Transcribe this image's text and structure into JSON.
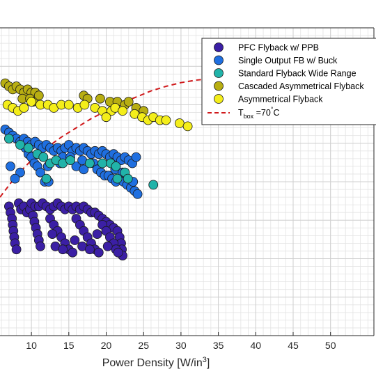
{
  "chart_data": {
    "type": "scatter",
    "xlabel": "Power Density [W/in",
    "xlabel_sup": "3",
    "xlabel_close": "]",
    "xlim": [
      5.8,
      55.8
    ],
    "ylim": [
      0,
      1
    ],
    "xticks": [
      10,
      15,
      20,
      25,
      30,
      35,
      40,
      45,
      50
    ],
    "grid": "on (major and minor)",
    "legend_placement": "top-right",
    "series": [
      {
        "name": "PFC Flyback w/ PPB",
        "color": "#3b1fa5",
        "points": [
          [
            7,
            0.42
          ],
          [
            7.2,
            0.4
          ],
          [
            7.4,
            0.38
          ],
          [
            7.5,
            0.36
          ],
          [
            7.6,
            0.34
          ],
          [
            7.7,
            0.32
          ],
          [
            7.8,
            0.3
          ],
          [
            8,
            0.28
          ],
          [
            8.3,
            0.43
          ],
          [
            8.6,
            0.41
          ],
          [
            9,
            0.42
          ],
          [
            9.4,
            0.4
          ],
          [
            9.8,
            0.41
          ],
          [
            10,
            0.43
          ],
          [
            10.5,
            0.42
          ],
          [
            11,
            0.42
          ],
          [
            11.5,
            0.43
          ],
          [
            12,
            0.42
          ],
          [
            12.5,
            0.41
          ],
          [
            13,
            0.42
          ],
          [
            13.5,
            0.43
          ],
          [
            14,
            0.42
          ],
          [
            14.5,
            0.41
          ],
          [
            15,
            0.42
          ],
          [
            15.5,
            0.41
          ],
          [
            16,
            0.42
          ],
          [
            16.5,
            0.41
          ],
          [
            17,
            0.42
          ],
          [
            17.5,
            0.41
          ],
          [
            18,
            0.4
          ],
          [
            18.5,
            0.4
          ],
          [
            19,
            0.39
          ],
          [
            19.5,
            0.38
          ],
          [
            20,
            0.37
          ],
          [
            20.5,
            0.36
          ],
          [
            21,
            0.35
          ],
          [
            21.5,
            0.34
          ],
          [
            21.8,
            0.32
          ],
          [
            22,
            0.3
          ],
          [
            22.1,
            0.28
          ],
          [
            22.2,
            0.26
          ],
          [
            10.2,
            0.39
          ],
          [
            10.4,
            0.37
          ],
          [
            10.6,
            0.35
          ],
          [
            10.8,
            0.33
          ],
          [
            11,
            0.31
          ],
          [
            11.2,
            0.29
          ],
          [
            12.5,
            0.38
          ],
          [
            13,
            0.36
          ],
          [
            13.5,
            0.34
          ],
          [
            14,
            0.32
          ],
          [
            14.5,
            0.3
          ],
          [
            15,
            0.28
          ],
          [
            15.5,
            0.27
          ],
          [
            16,
            0.38
          ],
          [
            16.5,
            0.36
          ],
          [
            17,
            0.34
          ],
          [
            17.5,
            0.32
          ],
          [
            18,
            0.3
          ],
          [
            18.5,
            0.28
          ],
          [
            19,
            0.27
          ],
          [
            19.5,
            0.36
          ],
          [
            20,
            0.34
          ],
          [
            20.5,
            0.32
          ],
          [
            21,
            0.3
          ],
          [
            21.3,
            0.28
          ],
          [
            21.6,
            0.27
          ],
          [
            13.2,
            0.29
          ],
          [
            14.2,
            0.28
          ],
          [
            16.8,
            0.29
          ],
          [
            17.8,
            0.28
          ],
          [
            12.8,
            0.33
          ],
          [
            15.8,
            0.31
          ],
          [
            18.8,
            0.33
          ],
          [
            20.2,
            0.29
          ]
        ]
      },
      {
        "name": "Single Output FB w/ Buck",
        "color": "#1f6fe0",
        "points": [
          [
            6.5,
            0.67
          ],
          [
            7,
            0.66
          ],
          [
            7.5,
            0.65
          ],
          [
            8,
            0.64
          ],
          [
            8.5,
            0.63
          ],
          [
            9,
            0.64
          ],
          [
            9.5,
            0.63
          ],
          [
            10,
            0.62
          ],
          [
            10.5,
            0.63
          ],
          [
            11,
            0.62
          ],
          [
            11.5,
            0.61
          ],
          [
            12,
            0.62
          ],
          [
            12.5,
            0.61
          ],
          [
            13,
            0.6
          ],
          [
            13.5,
            0.61
          ],
          [
            14,
            0.6
          ],
          [
            14.5,
            0.61
          ],
          [
            15,
            0.62
          ],
          [
            15.5,
            0.6
          ],
          [
            16,
            0.61
          ],
          [
            16.5,
            0.6
          ],
          [
            17,
            0.61
          ],
          [
            17.5,
            0.6
          ],
          [
            18,
            0.59
          ],
          [
            18.5,
            0.6
          ],
          [
            19,
            0.59
          ],
          [
            19.5,
            0.6
          ],
          [
            20,
            0.59
          ],
          [
            20.5,
            0.58
          ],
          [
            21,
            0.59
          ],
          [
            21.5,
            0.58
          ],
          [
            22,
            0.57
          ],
          [
            22.5,
            0.58
          ],
          [
            23,
            0.57
          ],
          [
            23.5,
            0.56
          ],
          [
            24,
            0.58
          ],
          [
            9.2,
            0.61
          ],
          [
            9.6,
            0.59
          ],
          [
            10,
            0.58
          ],
          [
            10.4,
            0.56
          ],
          [
            10.8,
            0.55
          ],
          [
            11.2,
            0.53
          ],
          [
            7.2,
            0.55
          ],
          [
            8.5,
            0.53
          ],
          [
            11.8,
            0.5
          ],
          [
            12.3,
            0.5
          ],
          [
            18.3,
            0.56
          ],
          [
            18.8,
            0.54
          ],
          [
            19.3,
            0.53
          ],
          [
            19.8,
            0.52
          ],
          [
            20.3,
            0.52
          ],
          [
            20.8,
            0.51
          ],
          [
            21.3,
            0.5
          ],
          [
            21.8,
            0.51
          ],
          [
            22.3,
            0.5
          ],
          [
            22.8,
            0.49
          ],
          [
            23.3,
            0.48
          ],
          [
            23.8,
            0.47
          ],
          [
            24.2,
            0.46
          ],
          [
            16,
            0.55
          ],
          [
            17,
            0.54
          ],
          [
            14.2,
            0.58
          ],
          [
            13.8,
            0.56
          ],
          [
            7.8,
            0.51
          ],
          [
            12.2,
            0.55
          ],
          [
            15.2,
            0.58
          ],
          [
            16.8,
            0.57
          ],
          [
            21.2,
            0.54
          ],
          [
            22.2,
            0.53
          ],
          [
            23.6,
            0.5
          ]
        ]
      },
      {
        "name": "Standard Flyback Wide Range",
        "color": "#21b3a9",
        "points": [
          [
            7,
            0.64
          ],
          [
            8.5,
            0.62
          ],
          [
            9.6,
            0.61
          ],
          [
            10.8,
            0.59
          ],
          [
            11.6,
            0.58
          ],
          [
            12.5,
            0.56
          ],
          [
            13.3,
            0.57
          ],
          [
            14.2,
            0.56
          ],
          [
            15.2,
            0.57
          ],
          [
            17.8,
            0.56
          ],
          [
            19.5,
            0.56
          ],
          [
            20.6,
            0.56
          ],
          [
            21.3,
            0.55
          ],
          [
            22.5,
            0.53
          ],
          [
            22.9,
            0.51
          ],
          [
            21.5,
            0.51
          ],
          [
            26.3,
            0.49
          ],
          [
            12,
            0.51
          ]
        ]
      },
      {
        "name": "Cascaded Asymmetrical Flyback",
        "color": "#b8ae12",
        "points": [
          [
            6.5,
            0.82
          ],
          [
            7,
            0.81
          ],
          [
            7.5,
            0.8
          ],
          [
            8,
            0.81
          ],
          [
            8.5,
            0.8
          ],
          [
            9,
            0.79
          ],
          [
            9.5,
            0.8
          ],
          [
            10,
            0.79
          ],
          [
            10.5,
            0.79
          ],
          [
            11,
            0.78
          ],
          [
            8.8,
            0.77
          ],
          [
            9.8,
            0.77
          ],
          [
            10.2,
            0.76
          ],
          [
            17,
            0.78
          ],
          [
            17.5,
            0.77
          ],
          [
            19.2,
            0.77
          ],
          [
            20.5,
            0.76
          ],
          [
            21.5,
            0.76
          ],
          [
            22.5,
            0.75
          ],
          [
            23,
            0.76
          ],
          [
            24,
            0.74
          ],
          [
            25,
            0.73
          ]
        ]
      },
      {
        "name": "Asymmetrical Flyback",
        "color": "#f4ee1a",
        "points": [
          [
            6.8,
            0.75
          ],
          [
            7.5,
            0.74
          ],
          [
            8.2,
            0.73
          ],
          [
            9,
            0.74
          ],
          [
            10,
            0.76
          ],
          [
            11.2,
            0.75
          ],
          [
            12.2,
            0.75
          ],
          [
            13,
            0.74
          ],
          [
            14,
            0.75
          ],
          [
            15,
            0.75
          ],
          [
            16.2,
            0.74
          ],
          [
            17.1,
            0.75
          ],
          [
            18.5,
            0.74
          ],
          [
            19.5,
            0.73
          ],
          [
            20.7,
            0.73
          ],
          [
            21.2,
            0.74
          ],
          [
            22.2,
            0.73
          ],
          [
            23.8,
            0.72
          ],
          [
            24.8,
            0.71
          ],
          [
            25.6,
            0.7
          ],
          [
            26.3,
            0.71
          ],
          [
            27.2,
            0.7
          ],
          [
            28,
            0.7
          ],
          [
            29.8,
            0.69
          ],
          [
            30.9,
            0.68
          ],
          [
            20,
            0.71
          ]
        ]
      }
    ],
    "curve": {
      "name": "T",
      "name_sub": "box",
      "name_rest": " =70",
      "name_deg": "°",
      "name_unit": "C",
      "color": "#d0191b",
      "points": [
        [
          5.8,
          0.45
        ],
        [
          8,
          0.52
        ],
        [
          10,
          0.57
        ],
        [
          12,
          0.61
        ],
        [
          14,
          0.645
        ],
        [
          16,
          0.675
        ],
        [
          18,
          0.705
        ],
        [
          20,
          0.73
        ],
        [
          22,
          0.755
        ],
        [
          24,
          0.775
        ],
        [
          26,
          0.795
        ],
        [
          28,
          0.81
        ],
        [
          30,
          0.822
        ],
        [
          32,
          0.83
        ],
        [
          34,
          0.835
        ],
        [
          36,
          0.838
        ]
      ]
    }
  }
}
